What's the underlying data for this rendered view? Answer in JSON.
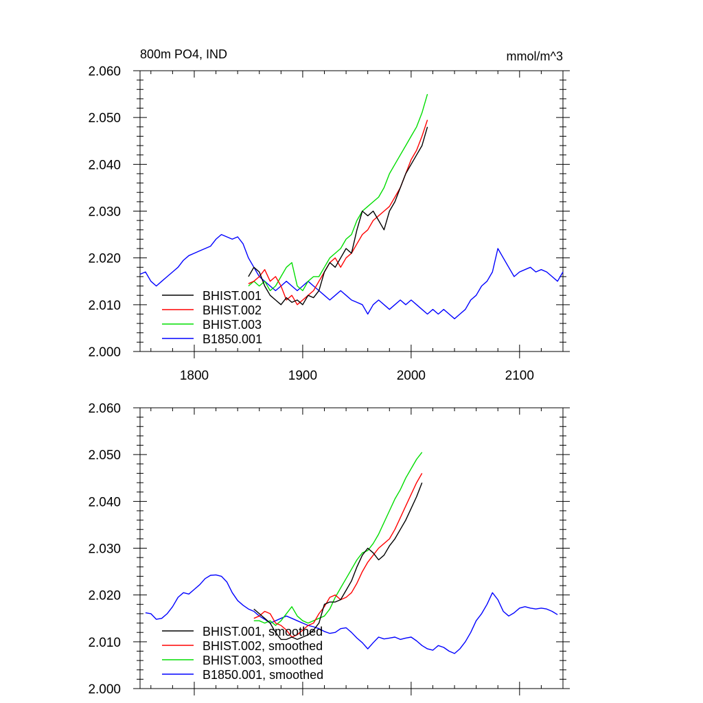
{
  "chart_data": [
    {
      "type": "line",
      "title": "800m PO4, IND",
      "units": "mmol/m^3",
      "xlim": [
        1750,
        2140
      ],
      "ylim": [
        2.0,
        2.06
      ],
      "xticks": [
        1800,
        1900,
        2000,
        2100
      ],
      "xtick_labels": [
        "1800",
        "1900",
        "2000",
        "2100"
      ],
      "yticks": [
        2.0,
        2.01,
        2.02,
        2.03,
        2.04,
        2.05,
        2.06
      ],
      "ytick_labels": [
        "2.000",
        "2.010",
        "2.020",
        "2.030",
        "2.040",
        "2.050",
        "2.060"
      ],
      "grid": false,
      "legend_position": "bottom-left",
      "series": [
        {
          "name": "BHIST.001",
          "color": "#000000",
          "x": [
            1850,
            1855,
            1860,
            1865,
            1870,
            1875,
            1880,
            1885,
            1890,
            1895,
            1900,
            1905,
            1910,
            1915,
            1920,
            1925,
            1930,
            1935,
            1940,
            1945,
            1950,
            1955,
            1960,
            1965,
            1970,
            1975,
            1980,
            1985,
            1990,
            1995,
            2000,
            2005,
            2010,
            2015
          ],
          "y": [
            2.016,
            2.018,
            2.017,
            2.014,
            2.012,
            2.011,
            2.01,
            2.0115,
            2.0105,
            2.011,
            2.01,
            2.012,
            2.0115,
            2.013,
            2.017,
            2.019,
            2.018,
            2.02,
            2.022,
            2.021,
            2.026,
            2.03,
            2.029,
            2.03,
            2.028,
            2.026,
            2.03,
            2.032,
            2.035,
            2.038,
            2.04,
            2.042,
            2.044,
            2.048
          ]
        },
        {
          "name": "BHIST.002",
          "color": "#ff0000",
          "x": [
            1850,
            1855,
            1860,
            1865,
            1870,
            1875,
            1880,
            1885,
            1890,
            1895,
            1900,
            1905,
            1910,
            1915,
            1920,
            1925,
            1930,
            1935,
            1940,
            1945,
            1950,
            1955,
            1960,
            1965,
            1970,
            1975,
            1980,
            1985,
            1990,
            1995,
            2000,
            2005,
            2010,
            2015
          ],
          "y": [
            2.0145,
            2.015,
            2.016,
            2.0175,
            2.015,
            2.016,
            2.014,
            2.011,
            2.012,
            2.01,
            2.011,
            2.012,
            2.013,
            2.015,
            2.017,
            2.019,
            2.02,
            2.018,
            2.02,
            2.021,
            2.023,
            2.025,
            2.026,
            2.028,
            2.029,
            2.03,
            2.031,
            2.033,
            2.035,
            2.038,
            2.041,
            2.043,
            2.046,
            2.0495
          ]
        },
        {
          "name": "BHIST.003",
          "color": "#00dd00",
          "x": [
            1850,
            1855,
            1860,
            1865,
            1870,
            1875,
            1880,
            1885,
            1890,
            1895,
            1900,
            1905,
            1910,
            1915,
            1920,
            1925,
            1930,
            1935,
            1940,
            1945,
            1950,
            1955,
            1960,
            1965,
            1970,
            1975,
            1980,
            1985,
            1990,
            1995,
            2000,
            2005,
            2010,
            2015
          ],
          "y": [
            2.014,
            2.015,
            2.014,
            2.015,
            2.013,
            2.014,
            2.016,
            2.018,
            2.019,
            2.014,
            2.013,
            2.015,
            2.016,
            2.016,
            2.018,
            2.02,
            2.021,
            2.022,
            2.024,
            2.025,
            2.028,
            2.03,
            2.031,
            2.032,
            2.033,
            2.035,
            2.038,
            2.04,
            2.042,
            2.044,
            2.046,
            2.048,
            2.051,
            2.055
          ]
        },
        {
          "name": "B1850.001",
          "color": "#0000ff",
          "x": [
            1750,
            1755,
            1760,
            1765,
            1770,
            1775,
            1780,
            1785,
            1790,
            1795,
            1800,
            1805,
            1810,
            1815,
            1820,
            1825,
            1830,
            1835,
            1840,
            1845,
            1850,
            1855,
            1860,
            1865,
            1870,
            1875,
            1880,
            1885,
            1890,
            1895,
            1900,
            1905,
            1910,
            1915,
            1920,
            1925,
            1930,
            1935,
            1940,
            1945,
            1950,
            1955,
            1960,
            1965,
            1970,
            1975,
            1980,
            1985,
            1990,
            1995,
            2000,
            2005,
            2010,
            2015,
            2020,
            2025,
            2030,
            2035,
            2040,
            2045,
            2050,
            2055,
            2060,
            2065,
            2070,
            2075,
            2080,
            2085,
            2090,
            2095,
            2100,
            2105,
            2110,
            2115,
            2120,
            2125,
            2130,
            2135,
            2140
          ],
          "y": [
            2.0165,
            2.017,
            2.015,
            2.014,
            2.015,
            2.016,
            2.017,
            2.018,
            2.0195,
            2.0205,
            2.021,
            2.0215,
            2.022,
            2.0225,
            2.024,
            2.025,
            2.0245,
            2.024,
            2.0245,
            2.023,
            2.02,
            2.018,
            2.016,
            2.015,
            2.014,
            2.013,
            2.014,
            2.015,
            2.014,
            2.013,
            2.014,
            2.015,
            2.014,
            2.013,
            2.012,
            2.011,
            2.012,
            2.013,
            2.012,
            2.011,
            2.0105,
            2.01,
            2.008,
            2.01,
            2.011,
            2.01,
            2.009,
            2.01,
            2.011,
            2.01,
            2.011,
            2.01,
            2.009,
            2.008,
            2.009,
            2.008,
            2.009,
            2.008,
            2.007,
            2.008,
            2.009,
            2.011,
            2.012,
            2.014,
            2.015,
            2.017,
            2.022,
            2.02,
            2.018,
            2.016,
            2.017,
            2.0175,
            2.018,
            2.017,
            2.0175,
            2.017,
            2.016,
            2.015,
            2.017
          ]
        }
      ]
    },
    {
      "type": "line",
      "title": "",
      "xlim": [
        1750,
        2140
      ],
      "ylim": [
        2.0,
        2.06
      ],
      "xticks": [
        1800,
        1900,
        2000,
        2100
      ],
      "xtick_labels": [],
      "yticks": [
        2.0,
        2.01,
        2.02,
        2.03,
        2.04,
        2.05,
        2.06
      ],
      "ytick_labels": [
        "2.000",
        "2.010",
        "2.020",
        "2.030",
        "2.040",
        "2.050",
        "2.060"
      ],
      "grid": false,
      "legend_position": "bottom-left",
      "series": [
        {
          "name": "BHIST.001, smoothed",
          "color": "#000000",
          "x": [
            1855,
            1860,
            1865,
            1870,
            1875,
            1880,
            1885,
            1890,
            1895,
            1900,
            1905,
            1910,
            1915,
            1920,
            1925,
            1930,
            1935,
            1940,
            1945,
            1950,
            1955,
            1960,
            1965,
            1970,
            1975,
            1980,
            1985,
            1990,
            1995,
            2000,
            2005,
            2010
          ],
          "y": [
            2.017,
            2.016,
            2.015,
            2.014,
            2.012,
            2.0105,
            2.0105,
            2.011,
            2.0105,
            2.011,
            2.0115,
            2.0125,
            2.014,
            2.018,
            2.0185,
            2.0185,
            2.019,
            2.021,
            2.023,
            2.026,
            2.0285,
            2.03,
            2.029,
            2.0275,
            2.0285,
            2.0305,
            2.032,
            2.034,
            2.036,
            2.0385,
            2.041,
            2.044
          ]
        },
        {
          "name": "BHIST.002, smoothed",
          "color": "#ff0000",
          "x": [
            1855,
            1860,
            1865,
            1870,
            1875,
            1880,
            1885,
            1890,
            1895,
            1900,
            1905,
            1910,
            1915,
            1920,
            1925,
            1930,
            1935,
            1940,
            1945,
            1950,
            1955,
            1960,
            1965,
            1970,
            1975,
            1980,
            1985,
            1990,
            1995,
            2000,
            2005,
            2010
          ],
          "y": [
            2.015,
            2.0155,
            2.0165,
            2.016,
            2.014,
            2.0135,
            2.0125,
            2.011,
            2.0115,
            2.0125,
            2.0135,
            2.014,
            2.016,
            2.0175,
            2.0195,
            2.02,
            2.019,
            2.0195,
            2.0205,
            2.0225,
            2.025,
            2.027,
            2.0285,
            2.03,
            2.031,
            2.032,
            2.034,
            2.0365,
            2.039,
            2.0415,
            2.044,
            2.046
          ]
        },
        {
          "name": "BHIST.003, smoothed",
          "color": "#00dd00",
          "x": [
            1855,
            1860,
            1865,
            1870,
            1875,
            1880,
            1885,
            1890,
            1895,
            1900,
            1905,
            1910,
            1915,
            1920,
            1925,
            1930,
            1935,
            1940,
            1945,
            1950,
            1955,
            1960,
            1965,
            1970,
            1975,
            1980,
            1985,
            1990,
            1995,
            2000,
            2005,
            2010
          ],
          "y": [
            2.0145,
            2.0145,
            2.014,
            2.0145,
            2.0135,
            2.0145,
            2.016,
            2.0175,
            2.0155,
            2.0145,
            2.014,
            2.0145,
            2.015,
            2.0155,
            2.017,
            2.0195,
            2.0215,
            2.0235,
            2.0255,
            2.0275,
            2.029,
            2.0295,
            2.031,
            2.033,
            2.0355,
            2.038,
            2.0405,
            2.0425,
            2.045,
            2.047,
            2.049,
            2.0505
          ]
        },
        {
          "name": "B1850.001, smoothed",
          "color": "#0000ff",
          "x": [
            1755,
            1760,
            1765,
            1770,
            1775,
            1780,
            1785,
            1790,
            1795,
            1800,
            1805,
            1810,
            1815,
            1820,
            1825,
            1830,
            1835,
            1840,
            1845,
            1850,
            1855,
            1860,
            1865,
            1870,
            1875,
            1880,
            1885,
            1890,
            1895,
            1900,
            1905,
            1910,
            1915,
            1920,
            1925,
            1930,
            1935,
            1940,
            1945,
            1950,
            1955,
            1960,
            1965,
            1970,
            1975,
            1980,
            1985,
            1990,
            1995,
            2000,
            2005,
            2010,
            2015,
            2020,
            2025,
            2030,
            2035,
            2040,
            2045,
            2050,
            2055,
            2060,
            2065,
            2070,
            2075,
            2080,
            2085,
            2090,
            2095,
            2100,
            2105,
            2110,
            2115,
            2120,
            2125,
            2130,
            2135
          ],
          "y": [
            2.0162,
            2.016,
            2.0148,
            2.015,
            2.016,
            2.0175,
            2.0195,
            2.0205,
            2.0202,
            2.0212,
            2.0222,
            2.0235,
            2.0242,
            2.0243,
            2.024,
            2.0228,
            2.0205,
            2.0188,
            2.0178,
            2.017,
            2.0165,
            2.0155,
            2.0148,
            2.014,
            2.0145,
            2.015,
            2.0155,
            2.015,
            2.0145,
            2.014,
            2.0135,
            2.0132,
            2.0128,
            2.0122,
            2.0118,
            2.012,
            2.0128,
            2.013,
            2.012,
            2.0108,
            2.0098,
            2.0085,
            2.0098,
            2.011,
            2.0106,
            2.0108,
            2.011,
            2.0105,
            2.0108,
            2.011,
            2.0102,
            2.0092,
            2.0085,
            2.0082,
            2.0092,
            2.0088,
            2.008,
            2.0075,
            2.0085,
            2.01,
            2.012,
            2.0145,
            2.016,
            2.018,
            2.0205,
            2.019,
            2.0165,
            2.0155,
            2.0162,
            2.0172,
            2.0175,
            2.0172,
            2.017,
            2.0172,
            2.017,
            2.0165,
            2.0158
          ]
        }
      ]
    }
  ]
}
